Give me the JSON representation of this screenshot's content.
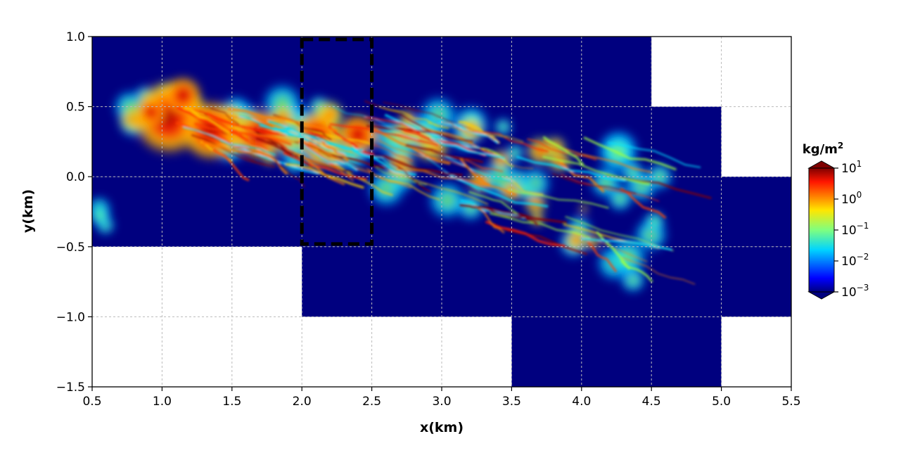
{
  "chart_data": {
    "type": "heatmap",
    "title": "",
    "xlabel": "x(km)",
    "ylabel": "y(km)",
    "xlim": [
      0.5,
      5.5
    ],
    "ylim": [
      -1.5,
      1.0
    ],
    "xticks": [
      "0.5",
      "1.0",
      "1.5",
      "2.0",
      "2.5",
      "3.0",
      "3.5",
      "4.0",
      "4.5",
      "5.0",
      "5.5"
    ],
    "yticks": [
      "1.0",
      "0.5",
      "0.0",
      "−0.5",
      "−1.0",
      "−1.5"
    ],
    "grid": true,
    "background_cells": [
      {
        "x0": 0.5,
        "x1": 4.5,
        "y0": 0.5,
        "y1": 1.0
      },
      {
        "x0": 0.5,
        "x1": 5.0,
        "y0": 0.0,
        "y1": 0.5
      },
      {
        "x0": 0.5,
        "x1": 5.5,
        "y0": -0.5,
        "y1": 0.0
      },
      {
        "x0": 2.0,
        "x1": 5.5,
        "y0": -1.0,
        "y1": -0.5
      },
      {
        "x0": 3.5,
        "x1": 5.0,
        "y0": -1.5,
        "y1": -1.0
      }
    ],
    "highlight_box": {
      "x0": 2.0,
      "x1": 2.5,
      "y0": -0.48,
      "y1": 0.98,
      "style": "dashed",
      "color": "#000000"
    },
    "plume": {
      "source_x": 0.5,
      "source_y": 0.43,
      "extent_x": [
        0.5,
        4.8
      ],
      "core_points": [
        [
          0.6,
          0.42
        ],
        [
          0.9,
          0.45
        ],
        [
          1.1,
          0.5
        ],
        [
          1.3,
          0.35
        ],
        [
          1.6,
          0.3
        ],
        [
          2.0,
          0.28
        ],
        [
          2.3,
          0.3
        ],
        [
          2.6,
          0.25
        ],
        [
          3.0,
          0.12
        ],
        [
          3.5,
          0.0
        ],
        [
          4.0,
          -0.12
        ],
        [
          4.5,
          -0.3
        ]
      ]
    },
    "colorbar": {
      "label": "kg/m²",
      "label_base": "kg/m",
      "label_sup": "2",
      "scale": "log",
      "range": [
        0.001,
        10
      ],
      "ticks": [
        {
          "base": "10",
          "exp": "1"
        },
        {
          "base": "10",
          "exp": "0"
        },
        {
          "base": "10",
          "exp": "−1"
        },
        {
          "base": "10",
          "exp": "−2"
        },
        {
          "base": "10",
          "exp": "−3"
        }
      ],
      "tick_values": [
        10,
        1,
        0.1,
        0.01,
        0.001
      ],
      "colormap": "jet",
      "extend": "both"
    },
    "colors": {
      "background_cell": "#00007f",
      "grid": "#bbbbbb"
    }
  }
}
